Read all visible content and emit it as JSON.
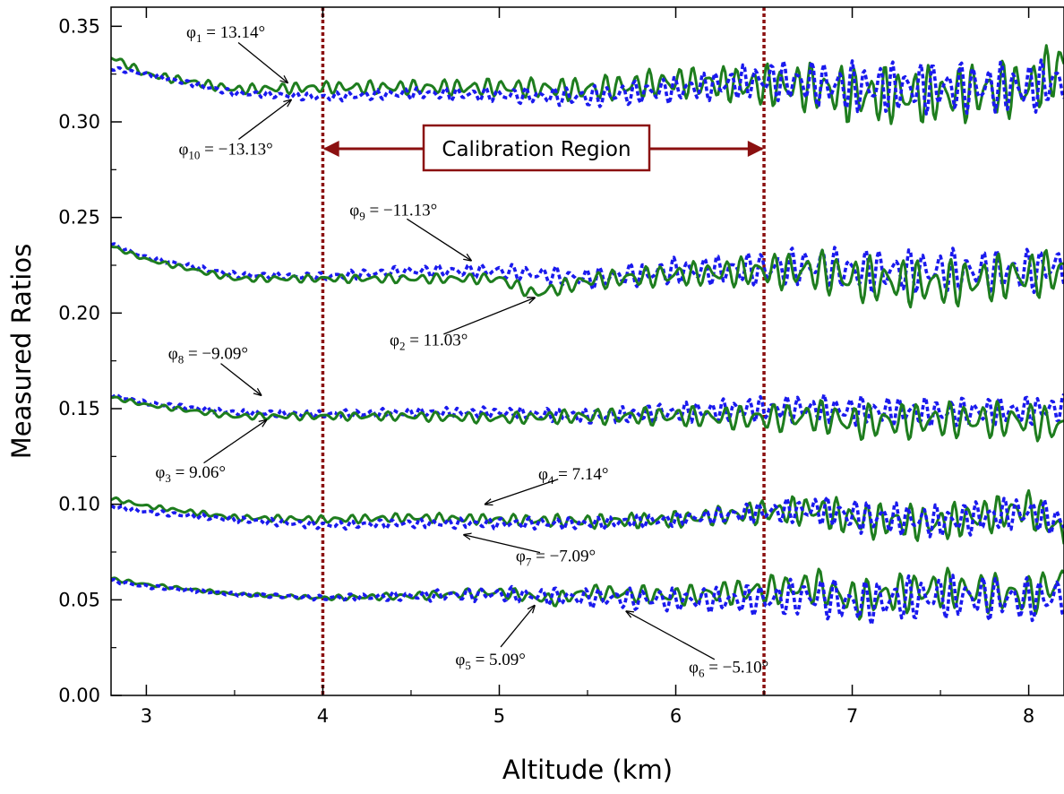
{
  "chart_data": {
    "type": "line",
    "title": "",
    "xlabel": "Altitude (km)",
    "ylabel": "Measured Ratios",
    "xlim": [
      2.8,
      8.2
    ],
    "ylim": [
      0.0,
      0.36
    ],
    "x_ticks": [
      "3",
      "4",
      "5",
      "6",
      "7",
      "8"
    ],
    "y_ticks": [
      "0.00",
      "0.05",
      "0.10",
      "0.15",
      "0.20",
      "0.25",
      "0.30",
      "0.35"
    ],
    "grid": false,
    "colors": {
      "solid": "#1e7d1e",
      "dashed": "#1a1aee",
      "region": "#8b1010"
    },
    "calibration_region": {
      "label": "Calibration Region",
      "x_start": 4.0,
      "x_end": 6.5
    },
    "series": [
      {
        "label": "φ1 = 13.14°",
        "sym": "φ",
        "sub": "1",
        "val": " = 13.14°",
        "style": "solid",
        "points": [
          [
            2.8,
            0.334
          ],
          [
            3.0,
            0.325
          ],
          [
            3.5,
            0.317
          ],
          [
            4.0,
            0.318
          ],
          [
            4.5,
            0.318
          ],
          [
            5.0,
            0.318
          ],
          [
            5.5,
            0.317
          ],
          [
            6.0,
            0.321
          ],
          [
            6.5,
            0.319
          ],
          [
            6.8,
            0.318
          ],
          [
            7.0,
            0.314
          ],
          [
            7.5,
            0.314
          ],
          [
            8.0,
            0.318
          ],
          [
            8.2,
            0.33
          ]
        ],
        "amp": [
          0.002,
          0.003,
          0.005,
          0.009,
          0.016
        ],
        "freq": 12,
        "phase": 0.3
      },
      {
        "label": "φ10 = −13.13°",
        "sym": "φ",
        "sub": "10",
        "val": " = −13.13°",
        "style": "dashed",
        "points": [
          [
            2.8,
            0.328
          ],
          [
            3.0,
            0.325
          ],
          [
            3.5,
            0.315
          ],
          [
            4.0,
            0.313
          ],
          [
            4.5,
            0.315
          ],
          [
            5.0,
            0.314
          ],
          [
            5.5,
            0.313
          ],
          [
            6.0,
            0.317
          ],
          [
            6.5,
            0.322
          ],
          [
            6.8,
            0.32
          ],
          [
            7.0,
            0.318
          ],
          [
            7.5,
            0.318
          ],
          [
            8.0,
            0.318
          ],
          [
            8.2,
            0.322
          ]
        ],
        "amp": [
          0.001,
          0.002,
          0.004,
          0.008,
          0.014
        ],
        "freq": 13,
        "phase": 1.7
      },
      {
        "label": "φ9 = −11.13°",
        "sym": "φ",
        "sub": "9",
        "val": " = −11.13°",
        "style": "dashed",
        "points": [
          [
            2.8,
            0.236
          ],
          [
            3.0,
            0.229
          ],
          [
            3.5,
            0.22
          ],
          [
            4.0,
            0.219
          ],
          [
            4.5,
            0.222
          ],
          [
            5.0,
            0.222
          ],
          [
            5.5,
            0.218
          ],
          [
            6.0,
            0.222
          ],
          [
            6.5,
            0.223
          ],
          [
            6.8,
            0.225
          ],
          [
            7.0,
            0.222
          ],
          [
            7.5,
            0.222
          ],
          [
            8.0,
            0.222
          ],
          [
            8.2,
            0.225
          ]
        ],
        "amp": [
          0.001,
          0.002,
          0.004,
          0.008,
          0.012
        ],
        "freq": 12,
        "phase": 2.4
      },
      {
        "label": "φ2 = 11.03°",
        "sym": "φ",
        "sub": "2",
        "val": " = 11.03°",
        "style": "solid",
        "points": [
          [
            2.8,
            0.235
          ],
          [
            3.0,
            0.228
          ],
          [
            3.5,
            0.218
          ],
          [
            4.0,
            0.218
          ],
          [
            4.5,
            0.218
          ],
          [
            5.0,
            0.218
          ],
          [
            5.2,
            0.21
          ],
          [
            5.5,
            0.217
          ],
          [
            6.0,
            0.22
          ],
          [
            6.5,
            0.222
          ],
          [
            6.8,
            0.222
          ],
          [
            7.0,
            0.218
          ],
          [
            7.5,
            0.215
          ],
          [
            8.0,
            0.22
          ],
          [
            8.2,
            0.222
          ]
        ],
        "amp": [
          0.001,
          0.002,
          0.003,
          0.007,
          0.013
        ],
        "freq": 11,
        "phase": 0.9
      },
      {
        "label": "φ8 = −9.09°",
        "sym": "φ",
        "sub": "8",
        "val": " = −9.09°",
        "style": "dashed",
        "points": [
          [
            2.8,
            0.157
          ],
          [
            3.0,
            0.153
          ],
          [
            3.5,
            0.148
          ],
          [
            4.0,
            0.147
          ],
          [
            4.5,
            0.148
          ],
          [
            5.0,
            0.148
          ],
          [
            5.5,
            0.146
          ],
          [
            6.0,
            0.148
          ],
          [
            6.5,
            0.15
          ],
          [
            6.8,
            0.15
          ],
          [
            7.0,
            0.149
          ],
          [
            7.5,
            0.148
          ],
          [
            8.0,
            0.149
          ],
          [
            8.2,
            0.15
          ]
        ],
        "amp": [
          0.001,
          0.002,
          0.003,
          0.006,
          0.008
        ],
        "freq": 14,
        "phase": 3.1
      },
      {
        "label": "φ3 = 9.06°",
        "sym": "φ",
        "sub": "3",
        "val": " = 9.06°",
        "style": "solid",
        "points": [
          [
            2.8,
            0.156
          ],
          [
            3.0,
            0.152
          ],
          [
            3.5,
            0.146
          ],
          [
            4.0,
            0.146
          ],
          [
            4.5,
            0.146
          ],
          [
            5.0,
            0.145
          ],
          [
            5.5,
            0.146
          ],
          [
            6.0,
            0.146
          ],
          [
            6.5,
            0.145
          ],
          [
            6.8,
            0.146
          ],
          [
            7.0,
            0.143
          ],
          [
            7.5,
            0.144
          ],
          [
            8.0,
            0.144
          ],
          [
            8.2,
            0.14
          ]
        ],
        "amp": [
          0.001,
          0.002,
          0.003,
          0.006,
          0.01
        ],
        "freq": 11,
        "phase": 1.2
      },
      {
        "label": "φ4 = 7.14°",
        "sym": "φ",
        "sub": "4",
        "val": " = 7.14°",
        "style": "solid",
        "points": [
          [
            2.8,
            0.103
          ],
          [
            3.0,
            0.099
          ],
          [
            3.5,
            0.093
          ],
          [
            4.0,
            0.092
          ],
          [
            4.5,
            0.093
          ],
          [
            5.0,
            0.092
          ],
          [
            5.5,
            0.091
          ],
          [
            6.0,
            0.092
          ],
          [
            6.5,
            0.096
          ],
          [
            6.8,
            0.097
          ],
          [
            7.0,
            0.092
          ],
          [
            7.5,
            0.09
          ],
          [
            8.0,
            0.098
          ],
          [
            8.2,
            0.085
          ]
        ],
        "amp": [
          0.001,
          0.002,
          0.003,
          0.005,
          0.01
        ],
        "freq": 12,
        "phase": 2.0
      },
      {
        "label": "φ7 = −7.09°",
        "sym": "φ",
        "sub": "7",
        "val": " = −7.09°",
        "style": "dashed",
        "points": [
          [
            2.8,
            0.099
          ],
          [
            3.0,
            0.096
          ],
          [
            3.5,
            0.092
          ],
          [
            4.0,
            0.089
          ],
          [
            4.5,
            0.09
          ],
          [
            5.0,
            0.09
          ],
          [
            5.5,
            0.09
          ],
          [
            6.0,
            0.092
          ],
          [
            6.5,
            0.096
          ],
          [
            6.8,
            0.097
          ],
          [
            7.0,
            0.094
          ],
          [
            7.5,
            0.091
          ],
          [
            8.0,
            0.096
          ],
          [
            8.2,
            0.09
          ]
        ],
        "amp": [
          0.001,
          0.002,
          0.003,
          0.004,
          0.009
        ],
        "freq": 13,
        "phase": 0.5
      },
      {
        "label": "φ5 = 5.09°",
        "sym": "φ",
        "sub": "5",
        "val": " = 5.09°",
        "style": "solid",
        "points": [
          [
            2.8,
            0.061
          ],
          [
            3.0,
            0.058
          ],
          [
            3.5,
            0.053
          ],
          [
            4.0,
            0.051
          ],
          [
            4.5,
            0.052
          ],
          [
            5.0,
            0.054
          ],
          [
            5.3,
            0.05
          ],
          [
            5.5,
            0.054
          ],
          [
            6.0,
            0.052
          ],
          [
            6.5,
            0.055
          ],
          [
            6.8,
            0.057
          ],
          [
            7.0,
            0.05
          ],
          [
            7.5,
            0.056
          ],
          [
            8.0,
            0.052
          ],
          [
            8.2,
            0.06
          ]
        ],
        "amp": [
          0.001,
          0.001,
          0.003,
          0.006,
          0.011
        ],
        "freq": 11,
        "phase": 1.8
      },
      {
        "label": "φ6 = −5.10°",
        "sym": "φ",
        "sub": "6",
        "val": " = −5.10°",
        "style": "dashed",
        "points": [
          [
            2.8,
            0.06
          ],
          [
            3.0,
            0.057
          ],
          [
            3.5,
            0.053
          ],
          [
            4.0,
            0.051
          ],
          [
            4.5,
            0.052
          ],
          [
            5.0,
            0.053
          ],
          [
            5.5,
            0.051
          ],
          [
            6.0,
            0.05
          ],
          [
            6.5,
            0.05
          ],
          [
            6.8,
            0.052
          ],
          [
            7.0,
            0.048
          ],
          [
            7.5,
            0.052
          ],
          [
            8.0,
            0.05
          ],
          [
            8.2,
            0.052
          ]
        ],
        "amp": [
          0.001,
          0.001,
          0.004,
          0.007,
          0.012
        ],
        "freq": 12,
        "phase": 2.7
      }
    ],
    "annotations": [
      {
        "series": 0,
        "tx": 3.45,
        "ty": 0.344,
        "ax": 3.8,
        "ay": 0.3205
      },
      {
        "series": 1,
        "tx": 3.45,
        "ty": 0.283,
        "ax": 3.82,
        "ay": 0.3115
      },
      {
        "series": 2,
        "tx": 4.4,
        "ty": 0.251,
        "ax": 4.84,
        "ay": 0.2275
      },
      {
        "series": 3,
        "tx": 4.6,
        "ty": 0.183,
        "ax": 5.2,
        "ay": 0.208
      },
      {
        "series": 4,
        "tx": 3.35,
        "ty": 0.176,
        "ax": 3.65,
        "ay": 0.157
      },
      {
        "series": 5,
        "tx": 3.25,
        "ty": 0.114,
        "ax": 3.68,
        "ay": 0.144
      },
      {
        "series": 6,
        "tx": 5.42,
        "ty": 0.113,
        "ax": 4.92,
        "ay": 0.1
      },
      {
        "series": 7,
        "tx": 5.32,
        "ty": 0.07,
        "ax": 4.8,
        "ay": 0.084
      },
      {
        "series": 8,
        "tx": 4.95,
        "ty": 0.016,
        "ax": 5.2,
        "ay": 0.047
      },
      {
        "series": 9,
        "tx": 6.3,
        "ty": 0.012,
        "ax": 5.72,
        "ay": 0.044
      }
    ]
  }
}
